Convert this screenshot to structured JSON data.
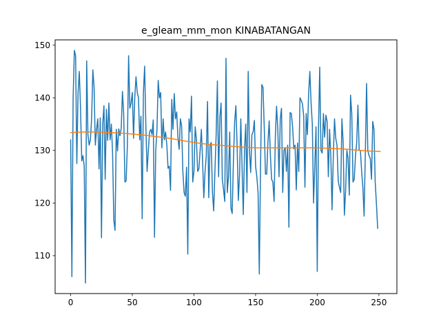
{
  "chart_data": {
    "type": "line",
    "title": "e_gleam_mm_mon KINABATANGAN",
    "xlabel": "",
    "ylabel": "",
    "xlim": [
      -12.6,
      264.6
    ],
    "ylim": [
      102.8,
      151.0
    ],
    "x_ticks": [
      0,
      50,
      100,
      150,
      200,
      250
    ],
    "y_ticks": [
      110,
      120,
      130,
      140,
      150
    ],
    "grid": false,
    "legend": "none",
    "series": [
      {
        "color": "#1f77b4",
        "x_start": 0,
        "x_step": 1,
        "values": [
          132.0,
          106.0,
          140.0,
          149.0,
          148.0,
          127.5,
          141.0,
          145.0,
          138.0,
          128.0,
          129.0,
          127.0,
          104.8,
          147.0,
          133.0,
          131.0,
          132.0,
          136.0,
          145.3,
          142.0,
          131.0,
          134.0,
          136.0,
          126.5,
          136.2,
          113.4,
          135.0,
          138.5,
          124.5,
          137.8,
          131.9,
          139.0,
          132.0,
          135.0,
          129.5,
          116.8,
          114.8,
          134.0,
          129.9,
          134.1,
          132.8,
          134.2,
          141.2,
          137.0,
          124.0,
          124.2,
          131.0,
          148.0,
          138.0,
          139.0,
          141.0,
          132.3,
          140.1,
          144.0,
          141.0,
          140.0,
          132.0,
          136.5,
          117.0,
          141.0,
          146.0,
          134.5,
          126.0,
          130.0,
          133.5,
          134.0,
          133.0,
          135.8,
          113.5,
          130.0,
          134.0,
          143.3,
          140.0,
          141.0,
          130.5,
          136.0,
          132.0,
          133.5,
          131.0,
          126.6,
          127.0,
          122.4,
          139.7,
          134.0,
          140.8,
          136.0,
          137.3,
          132.5,
          130.2,
          136.0,
          134.6,
          126.0,
          122.0,
          121.3,
          126.8,
          110.3,
          136.0,
          133.5,
          140.3,
          124.0,
          126.0,
          134.5,
          132.0,
          126.0,
          126.5,
          130.0,
          134.0,
          128.0,
          121.0,
          126.0,
          129.0,
          139.3,
          121.0,
          131.0,
          131.5,
          122.0,
          118.5,
          126.0,
          133.0,
          143.2,
          125.0,
          136.3,
          139.0,
          124.5,
          122.5,
          120.3,
          147.5,
          122.0,
          125.0,
          133.5,
          119.0,
          118.0,
          128.0,
          135.4,
          138.5,
          131.0,
          120.5,
          125.5,
          136.0,
          127.0,
          117.8,
          130.0,
          135.0,
          122.0,
          145.0,
          130.0,
          125.8,
          133.0,
          133.5,
          135.7,
          127.0,
          125.0,
          122.0,
          106.5,
          126.8,
          142.5,
          142.0,
          134.5,
          125.5,
          125.5,
          131.5,
          135.6,
          129.0,
          124.5,
          124.0,
          120.3,
          132.5,
          138.4,
          134.0,
          125.0,
          136.0,
          138.0,
          122.0,
          130.0,
          130.5,
          126.0,
          131.0,
          115.4,
          137.2,
          137.0,
          134.5,
          130.3,
          131.0,
          122.5,
          131.4,
          126.0,
          140.0,
          139.5,
          138.8,
          136.5,
          123.0,
          137.0,
          133.0,
          140.8,
          145.0,
          139.0,
          135.0,
          120.0,
          127.0,
          134.5,
          107.0,
          134.0,
          145.8,
          130.0,
          129.5,
          137.0,
          132.5,
          136.7,
          135.5,
          125.0,
          134.0,
          129.0,
          118.7,
          128.7,
          136.0,
          132.3,
          131.0,
          124.2,
          123.0,
          122.0,
          136.0,
          131.5,
          117.7,
          122.3,
          130.0,
          128.5,
          121.5,
          140.5,
          137.0,
          124.0,
          124.5,
          129.0,
          131.5,
          138.6,
          130.0,
          130.0,
          126.0,
          123.0,
          117.5,
          129.5,
          142.7,
          130.0,
          129.0,
          128.5,
          124.5,
          135.5,
          134.0,
          124.0,
          119.8,
          115.2
        ]
      },
      {
        "color": "#ff7f0e",
        "x": [
          0,
          10,
          20,
          30,
          40,
          50,
          60,
          70,
          80,
          90,
          100,
          110,
          120,
          130,
          140,
          150,
          160,
          170,
          180,
          190,
          200,
          210,
          220,
          230,
          240,
          251
        ],
        "values": [
          133.4,
          133.5,
          133.5,
          133.4,
          133.3,
          133.1,
          132.9,
          132.6,
          132.3,
          131.9,
          131.5,
          131.2,
          131.0,
          130.8,
          130.6,
          130.5,
          130.5,
          130.5,
          130.5,
          130.5,
          130.5,
          130.4,
          130.3,
          130.1,
          129.9,
          129.8
        ]
      }
    ]
  }
}
